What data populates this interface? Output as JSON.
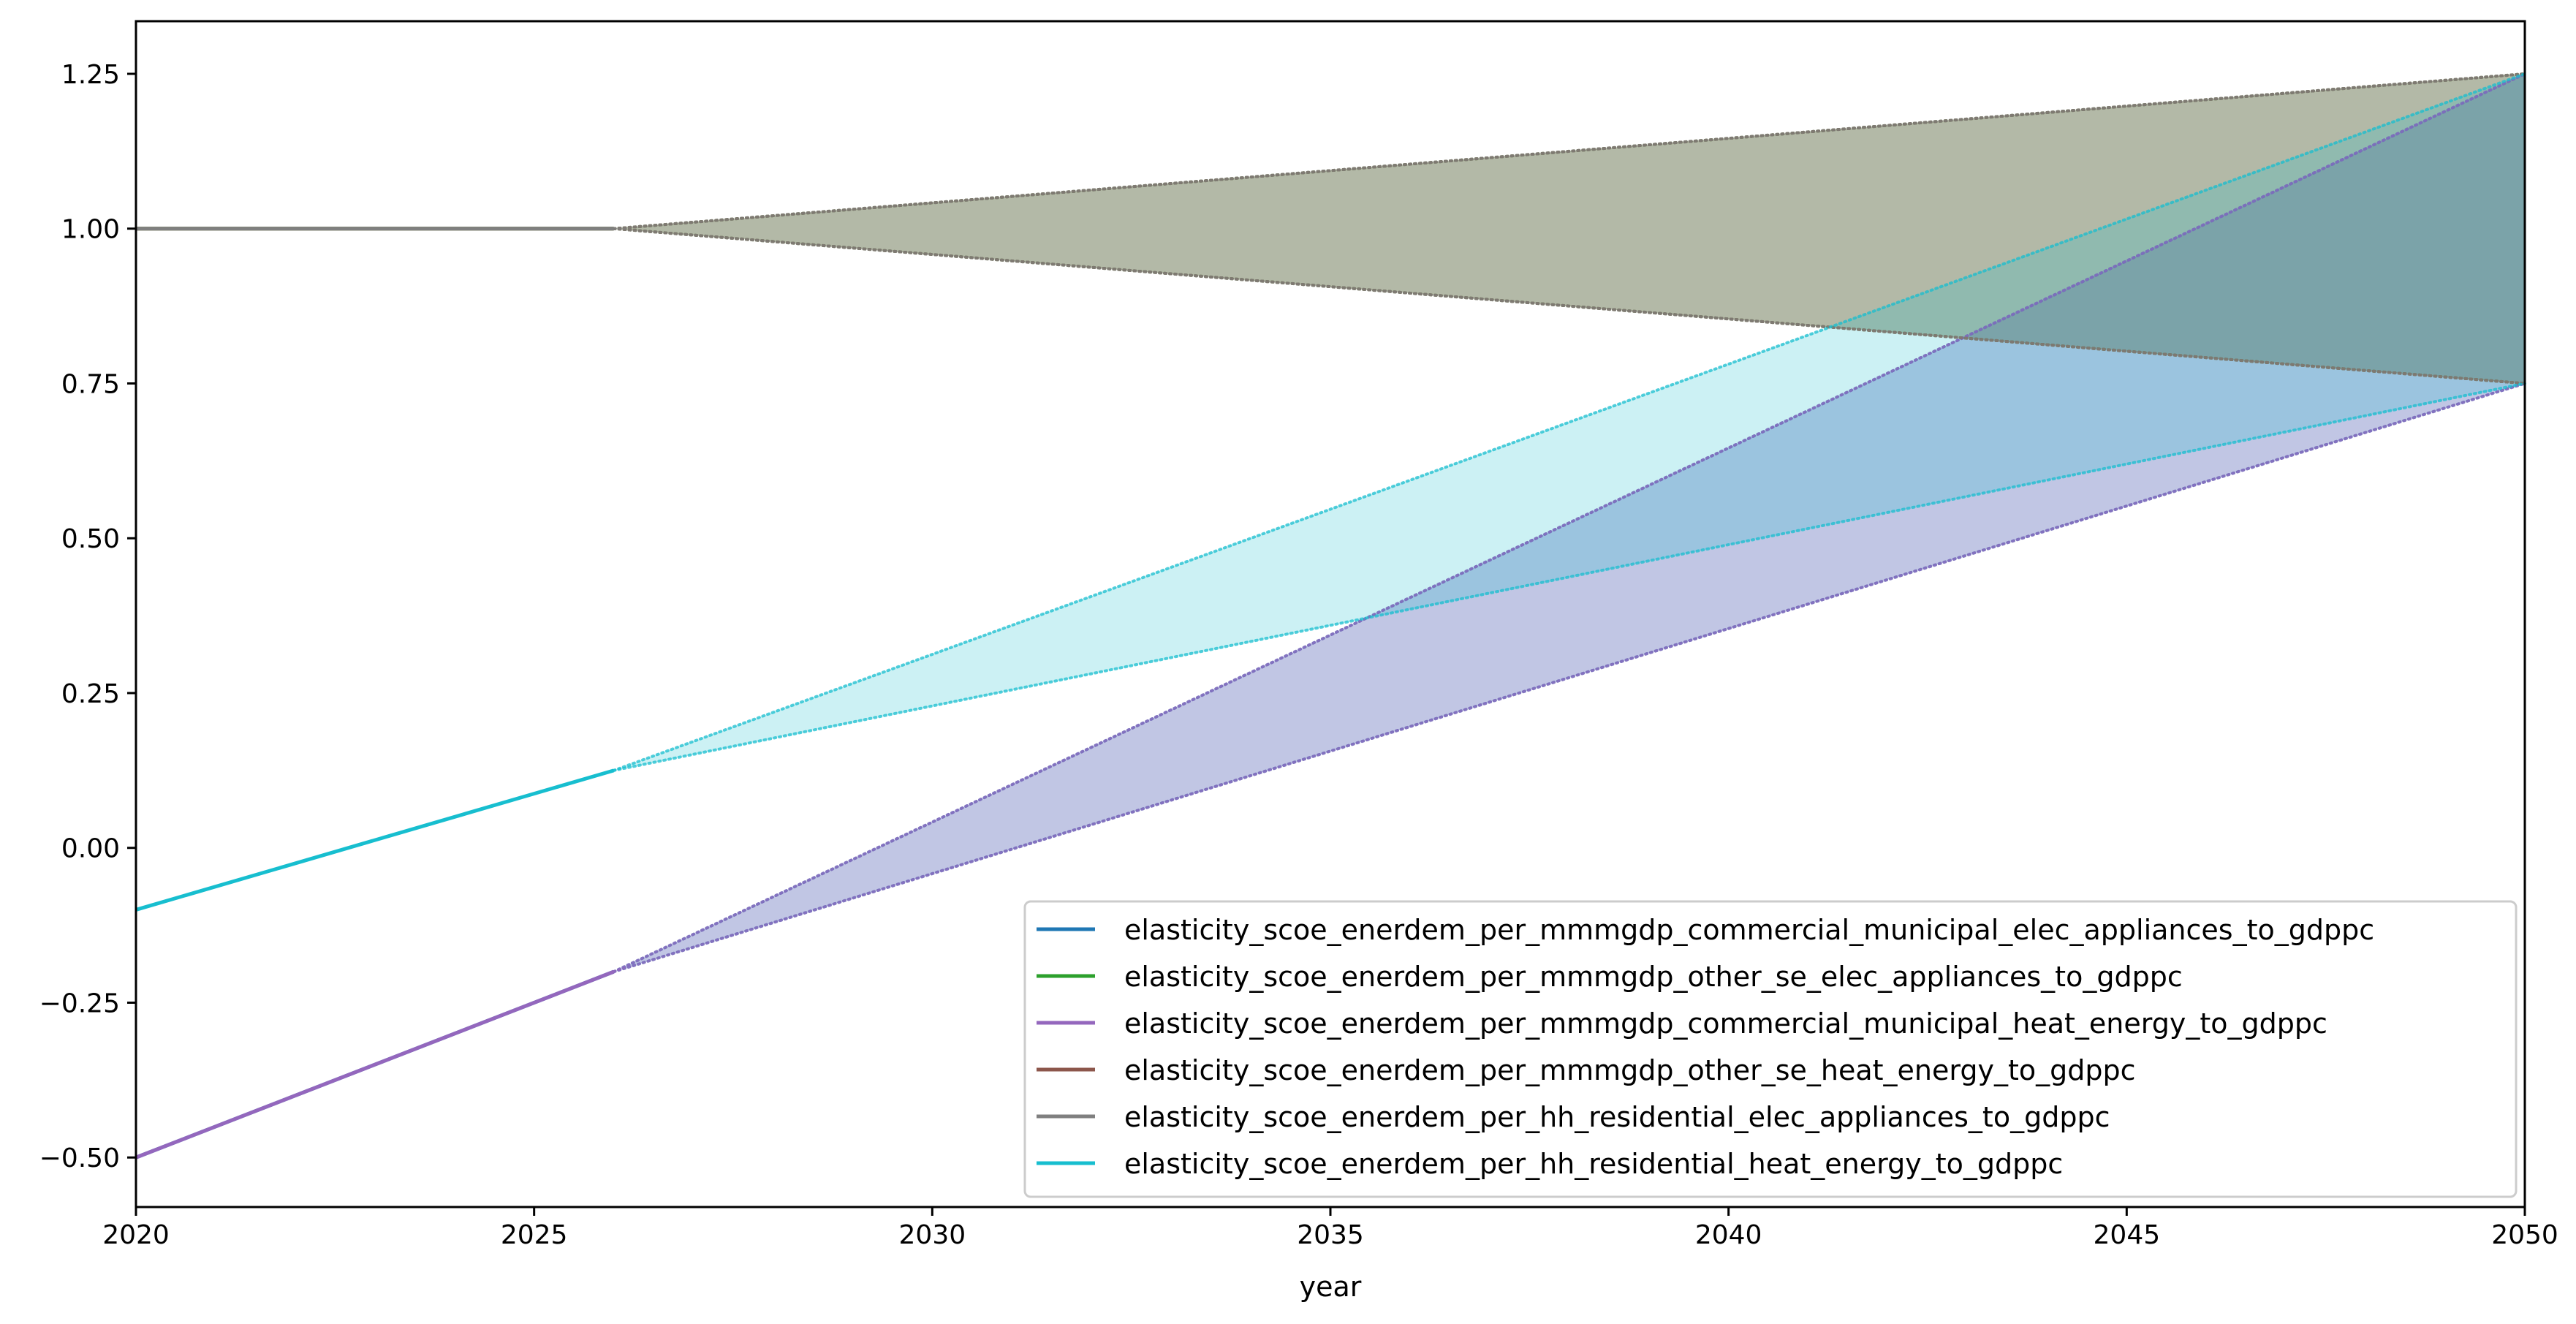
{
  "chart_data": {
    "type": "line",
    "title": "",
    "xlabel": "year",
    "ylabel": "",
    "xlim": [
      2020,
      2050
    ],
    "ylim": [
      -0.58,
      1.335
    ],
    "x_ticks": [
      2020,
      2025,
      2030,
      2035,
      2040,
      2045,
      2050
    ],
    "y_ticks": [
      -0.5,
      -0.25,
      0.0,
      0.25,
      0.5,
      0.75,
      1.0,
      1.25
    ],
    "y_tick_labels": [
      "−0.50",
      "−0.25",
      "0.00",
      "0.25",
      "0.50",
      "0.75",
      "1.00",
      "1.25"
    ],
    "grid": false,
    "legend_position": "lower right",
    "series": [
      {
        "name": "elasticity_scoe_enerdem_per_mmmgdp_commercial_municipal_elec_appliances_to_gdppc",
        "color": "#1f77b4",
        "x": [
          2020,
          2026
        ],
        "y": [
          -0.5,
          -0.2
        ],
        "band": {
          "x": [
            2026,
            2050
          ],
          "lower": [
            -0.2,
            0.75
          ],
          "upper": [
            -0.2,
            1.25
          ]
        }
      },
      {
        "name": "elasticity_scoe_enerdem_per_mmmgdp_other_se_elec_appliances_to_gdppc",
        "color": "#2ca02c",
        "x": [
          2020,
          2026
        ],
        "y": [
          1.0,
          1.0
        ],
        "band": {
          "x": [
            2026,
            2050
          ],
          "lower": [
            1.0,
            0.75
          ],
          "upper": [
            1.0,
            1.25
          ]
        }
      },
      {
        "name": "elasticity_scoe_enerdem_per_mmmgdp_commercial_municipal_heat_energy_to_gdppc",
        "color": "#9467bd",
        "x": [
          2020,
          2026
        ],
        "y": [
          -0.5,
          -0.2
        ],
        "band": {
          "x": [
            2026,
            2050
          ],
          "lower": [
            -0.2,
            0.75
          ],
          "upper": [
            -0.2,
            1.25
          ]
        }
      },
      {
        "name": "elasticity_scoe_enerdem_per_mmmgdp_other_se_heat_energy_to_gdppc",
        "color": "#8c564b",
        "x": [
          2020,
          2026
        ],
        "y": [
          1.0,
          1.0
        ],
        "band": {
          "x": [
            2026,
            2050
          ],
          "lower": [
            1.0,
            0.75
          ],
          "upper": [
            1.0,
            1.25
          ]
        }
      },
      {
        "name": "elasticity_scoe_enerdem_per_hh_residential_elec_appliances_to_gdppc",
        "color": "#7f7f7f",
        "x": [
          2020,
          2026
        ],
        "y": [
          1.0,
          1.0
        ],
        "band": {
          "x": [
            2026,
            2050
          ],
          "lower": [
            1.0,
            0.75
          ],
          "upper": [
            1.0,
            1.25
          ]
        }
      },
      {
        "name": "elasticity_scoe_enerdem_per_hh_residential_heat_energy_to_gdppc",
        "color": "#17becf",
        "x": [
          2020,
          2026
        ],
        "y": [
          -0.1,
          0.125
        ],
        "band": {
          "x": [
            2026,
            2050
          ],
          "lower": [
            0.125,
            0.75
          ],
          "upper": [
            0.125,
            1.25
          ]
        }
      }
    ]
  }
}
